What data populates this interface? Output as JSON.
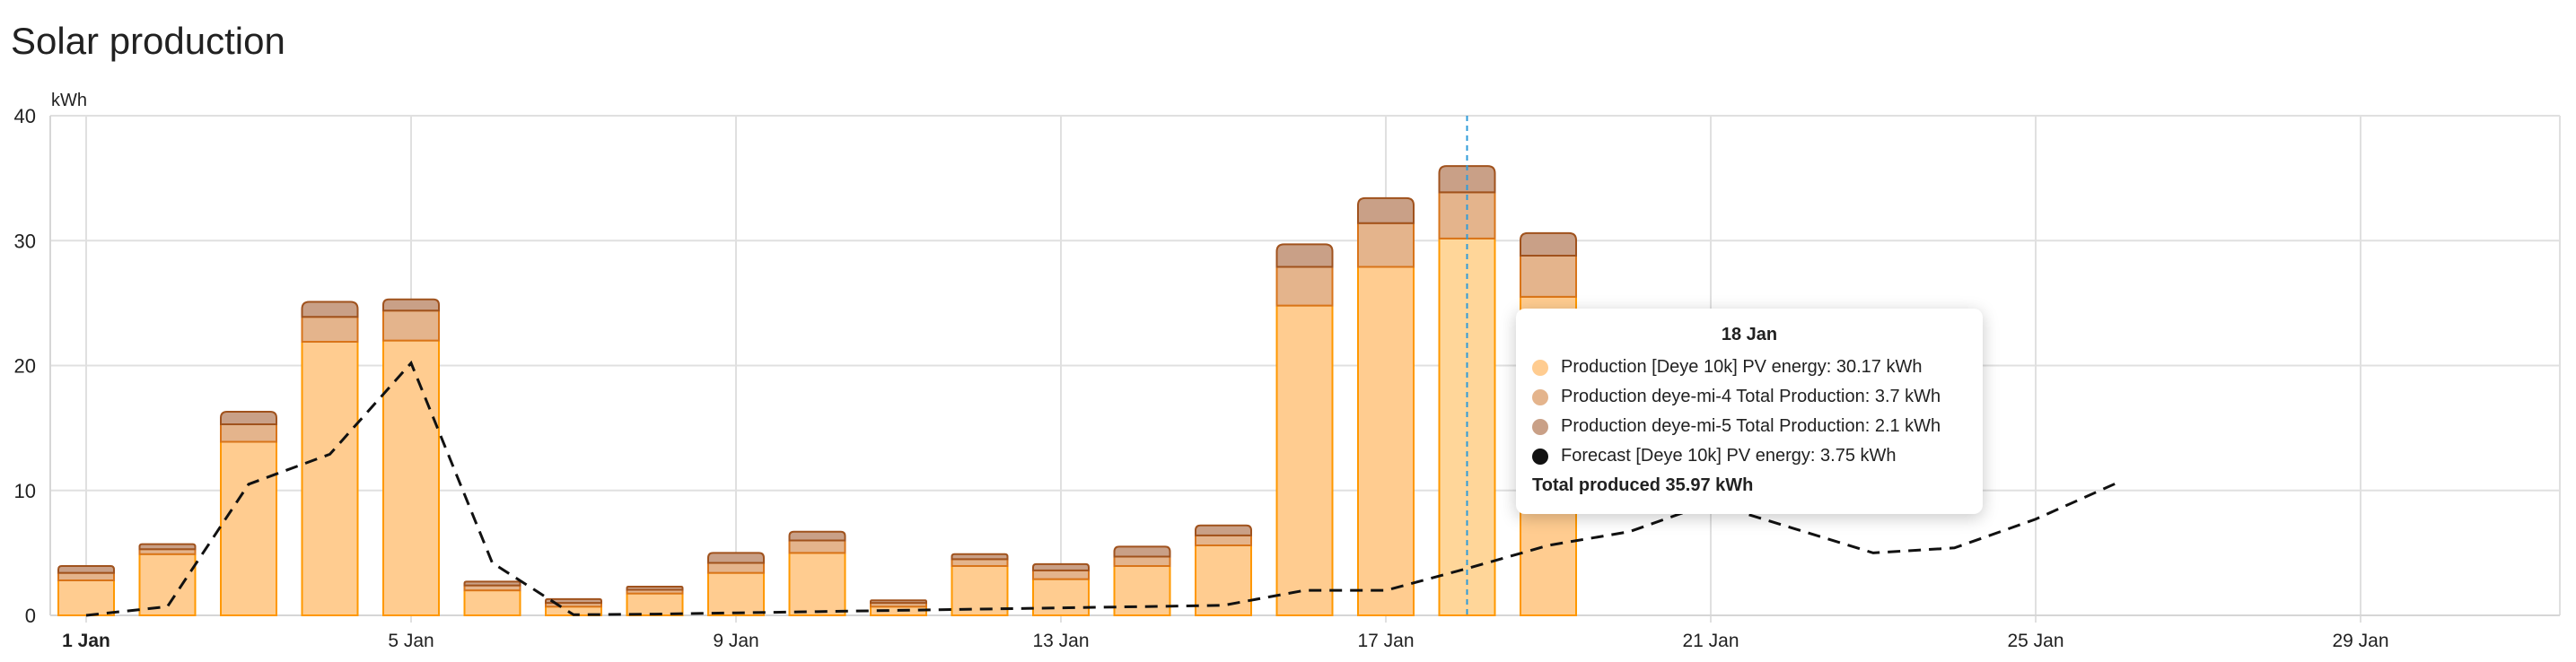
{
  "card": {
    "title": "Solar production"
  },
  "chart_data": {
    "type": "bar",
    "stacked": true,
    "title": "Solar production",
    "ylabel": "kWh",
    "ylim": [
      0,
      40
    ],
    "yticks": [
      "0",
      "10",
      "20",
      "30",
      "40"
    ],
    "x_days": [
      1,
      2,
      3,
      4,
      5,
      6,
      7,
      8,
      9,
      10,
      11,
      12,
      13,
      14,
      15,
      16,
      17,
      18,
      19,
      20,
      21,
      22,
      23,
      24,
      25,
      26,
      27,
      28,
      29,
      30,
      31
    ],
    "xtick_labels": [
      {
        "day": 1,
        "label": "1 Jan",
        "bold": true
      },
      {
        "day": 5,
        "label": "5 Jan"
      },
      {
        "day": 9,
        "label": "9 Jan"
      },
      {
        "day": 13,
        "label": "13 Jan"
      },
      {
        "day": 17,
        "label": "17 Jan"
      },
      {
        "day": 21,
        "label": "21 Jan"
      },
      {
        "day": 25,
        "label": "25 Jan"
      },
      {
        "day": 29,
        "label": "29 Jan"
      }
    ],
    "grid": true,
    "hover_day": 18,
    "series": [
      {
        "name": "Production [Deye 10k] PV energy",
        "kind": "bar",
        "color": "#ffcc90",
        "border": "#ff9800",
        "values": [
          2.8,
          4.9,
          13.9,
          21.9,
          22.0,
          2.0,
          0.7,
          1.75,
          3.4,
          5.0,
          0.7,
          3.95,
          2.9,
          3.95,
          5.6,
          24.8,
          27.9,
          30.17,
          25.5
        ]
      },
      {
        "name": "Production deye-mi-4 Total Production",
        "kind": "bar",
        "color": "#e4b48c",
        "border": "#d8741a",
        "values": [
          0.6,
          0.4,
          1.4,
          2.0,
          2.4,
          0.4,
          0.3,
          0.3,
          0.8,
          1.0,
          0.3,
          0.55,
          0.7,
          0.75,
          0.8,
          3.1,
          3.5,
          3.7,
          3.3
        ]
      },
      {
        "name": "Production deye-mi-5 Total Production",
        "kind": "bar",
        "color": "#c9a087",
        "border": "#a0521d",
        "values": [
          0.55,
          0.4,
          1.0,
          1.2,
          0.9,
          0.3,
          0.3,
          0.25,
          0.8,
          0.7,
          0.2,
          0.4,
          0.5,
          0.8,
          0.8,
          1.8,
          2.0,
          2.1,
          1.8
        ]
      },
      {
        "name": "Forecast [Deye 10k] PV energy",
        "kind": "line",
        "dashed": true,
        "color": "#111111",
        "values": [
          0.0,
          0.7,
          10.5,
          12.9,
          20.2,
          4.2,
          0.05,
          0.1,
          0.2,
          0.3,
          0.4,
          0.5,
          0.6,
          0.7,
          0.8,
          2.0,
          2.0,
          3.75,
          5.6,
          6.7,
          9.0,
          7.0,
          5.0,
          5.4,
          7.7,
          10.6
        ]
      }
    ],
    "tooltip": {
      "title": "18 Jan",
      "rows": [
        {
          "label": "Production [Deye 10k] PV energy: 30.17 kWh",
          "color": "#ffcc90"
        },
        {
          "label": "Production deye-mi-4 Total Production: 3.7 kWh",
          "color": "#e4b48c"
        },
        {
          "label": "Production deye-mi-5 Total Production: 2.1 kWh",
          "color": "#c9a087"
        },
        {
          "label": "Forecast [Deye 10k] PV energy: 3.75 kWh",
          "color": "#111111"
        }
      ],
      "total": "Total produced 35.97 kWh"
    },
    "hover_line_color": "#2f9bd8"
  }
}
